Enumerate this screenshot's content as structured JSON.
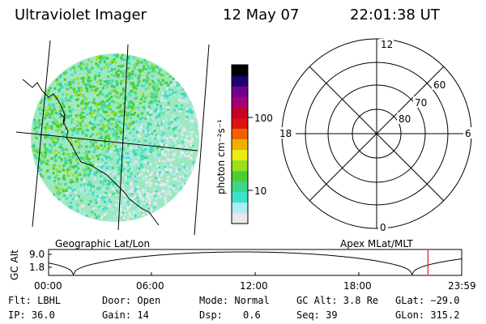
{
  "header": {
    "instrument": "Ultraviolet Imager",
    "date": "12 May 07",
    "time": "22:01:38 UT"
  },
  "colorbar": {
    "unit_label": "photon cm⁻²s⁻¹",
    "tick_100": "100",
    "tick_10": "10",
    "colors": [
      "#e8e8e8",
      "#b0ecec",
      "#40e0d0",
      "#3cd888",
      "#4ccc30",
      "#98e020",
      "#ecec10",
      "#f0b000",
      "#f06000",
      "#e01010",
      "#c80028",
      "#a0007c",
      "#700090",
      "#200070",
      "#000000"
    ]
  },
  "polar": {
    "label_12": "12",
    "label_6": "6",
    "label_18": "18",
    "label_0": "0",
    "label_60": "60",
    "label_70": "70",
    "label_80": "80"
  },
  "map_labels": {
    "left": "Geographic Lat/Lon",
    "right": "Apex MLat/MLT"
  },
  "orbit_plot": {
    "ylabel": "GC Alt",
    "y_top": "9.0",
    "y_bottom": "1.8",
    "x_ticks": [
      "00:00",
      "06:00",
      "12:00",
      "18:00",
      "23:59"
    ],
    "marker_color": "#e02020"
  },
  "info": {
    "flt": "Flt: LBHL",
    "ip": "IP: 36.0",
    "door": "Door: Open",
    "gain": "Gain: 14",
    "mode": "Mode: Normal",
    "dsp_label": "Dsp:",
    "dsp_value": "0.6",
    "gc_alt": "GC Alt: 3.8 Re",
    "seq": "Seq: 39",
    "glat": "GLat: −29.0",
    "glon": "GLon: 315.2"
  }
}
